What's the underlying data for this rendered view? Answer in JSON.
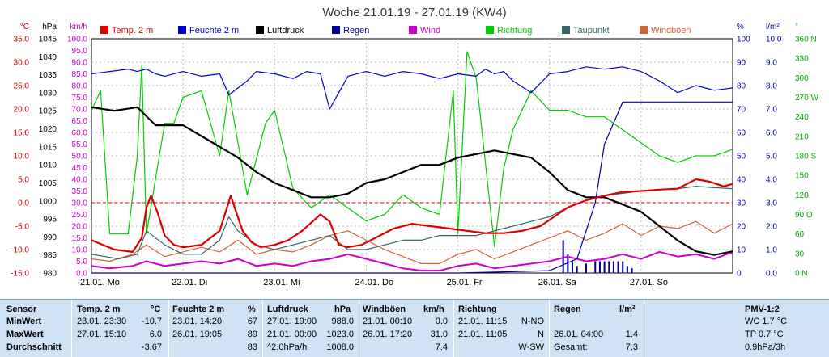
{
  "chart_data": {
    "type": "line",
    "title": "Woche 21.01.19 - 27.01.19 (KW4)",
    "left_axes": [
      {
        "unit": "°C",
        "color": "#cc0000",
        "range": [
          -15,
          35
        ],
        "ticks": [
          "35.0",
          "30.0",
          "25.0",
          "20.0",
          "15.0",
          "10.0",
          "5.0",
          "0.0",
          "-5.0",
          "-10.0",
          "-15.0"
        ]
      },
      {
        "unit": "hPa",
        "color": "#000000",
        "range": [
          980,
          1045
        ],
        "ticks": [
          "1045",
          "1040",
          "1035",
          "1030",
          "1025",
          "1020",
          "1015",
          "1010",
          "1005",
          "1000",
          "995",
          "990",
          "985",
          "980"
        ]
      },
      {
        "unit": "km/h",
        "color": "#cc00cc",
        "range": [
          0,
          100
        ],
        "ticks": [
          "100.0",
          "95.0",
          "90.0",
          "85.0",
          "80.0",
          "75.0",
          "70.0",
          "65.0",
          "60.0",
          "55.0",
          "50.0",
          "45.0",
          "40.0",
          "35.0",
          "30.0",
          "25.0",
          "20.0",
          "15.0",
          "10.0",
          "5.0",
          "0.0"
        ]
      }
    ],
    "right_axes": [
      {
        "unit": "%",
        "color": "#0000aa",
        "range": [
          0,
          100
        ],
        "ticks": [
          "100",
          "90",
          "80",
          "70",
          "60",
          "50",
          "40",
          "30",
          "20",
          "10",
          "0"
        ]
      },
      {
        "unit": "l/m²",
        "color": "#0000aa",
        "range": [
          0,
          10
        ],
        "ticks": [
          "10.0",
          "9.0",
          "8.0",
          "7.0",
          "6.0",
          "5.0",
          "4.0",
          "3.0",
          "2.0",
          "1.0",
          "0.0"
        ]
      },
      {
        "unit": "°",
        "color": "#00aa00",
        "range": [
          0,
          360
        ],
        "ticks": [
          "360 N",
          "330",
          "300",
          "270 W",
          "240",
          "210",
          "180 S",
          "150",
          "120",
          "90 O",
          "60",
          "30",
          "0 N"
        ]
      }
    ],
    "x_labels": [
      "21.01.  Mo",
      "22.01.  Di",
      "23.01.  Mi",
      "24.01.  Do",
      "25.01.  Fr",
      "26.01.  Sa",
      "27.01.  So"
    ],
    "legend": [
      {
        "name": "Temp. 2 m",
        "color": "#dd0000"
      },
      {
        "name": "Feuchte  2 m",
        "color": "#0000cc"
      },
      {
        "name": "Luftdruck",
        "color": "#000000"
      },
      {
        "name": "Regen",
        "color": "#000099"
      },
      {
        "name": "Wind",
        "color": "#cc00cc"
      },
      {
        "name": "Richtung",
        "color": "#00cc00"
      },
      {
        "name": "Taupunkt",
        "color": "#336666"
      },
      {
        "name": "Windböen",
        "color": "#cc6633"
      }
    ],
    "zero_line": 0,
    "series": [
      {
        "name": "Temp. 2 m",
        "axis": "°C",
        "color": "#dd0000",
        "x": [
          0,
          0.25,
          0.45,
          0.55,
          0.6,
          0.65,
          0.72,
          0.8,
          0.9,
          1.0,
          1.2,
          1.4,
          1.52,
          1.58,
          1.65,
          1.75,
          1.85,
          2.0,
          2.15,
          2.3,
          2.5,
          2.6,
          2.7,
          2.8,
          2.95,
          3.1,
          3.3,
          3.5,
          3.7,
          3.9,
          4.1,
          4.3,
          4.5,
          4.7,
          4.9,
          5.05,
          5.2,
          5.4,
          5.6,
          5.8,
          6.0,
          6.2,
          6.4,
          6.5,
          6.6,
          6.75,
          6.9,
          7.0
        ],
        "y": [
          -8.0,
          -10.0,
          -10.5,
          -7.5,
          -1.0,
          1.5,
          -2.0,
          -7.0,
          -9.0,
          -9.5,
          -9.0,
          -6.0,
          1.5,
          -2.0,
          -6.0,
          -8.5,
          -9.5,
          -9.0,
          -8.0,
          -6.0,
          -2.5,
          -4.0,
          -9.0,
          -9.5,
          -9.0,
          -7.5,
          -5.5,
          -4.5,
          -5.0,
          -5.5,
          -6.0,
          -6.5,
          -6.5,
          -6.0,
          -5.0,
          -3.0,
          -1.0,
          0.5,
          1.5,
          2.3,
          2.5,
          2.8,
          3.0,
          4.0,
          5.0,
          4.5,
          3.5,
          4.0
        ]
      },
      {
        "name": "Feuchte  2 m",
        "axis": "%",
        "color": "#0000cc",
        "x": [
          0,
          0.2,
          0.4,
          0.5,
          0.6,
          0.7,
          0.8,
          1.0,
          1.2,
          1.4,
          1.5,
          1.6,
          1.7,
          1.8,
          2.0,
          2.2,
          2.35,
          2.5,
          2.6,
          2.8,
          3.0,
          3.2,
          3.4,
          3.6,
          3.8,
          4.0,
          4.2,
          4.3,
          4.4,
          4.5,
          4.6,
          4.8,
          5.0,
          5.2,
          5.4,
          5.6,
          5.8,
          6.0,
          6.2,
          6.4,
          6.6,
          6.8,
          7.0
        ],
        "y": [
          85,
          86,
          87,
          86,
          87,
          85,
          84,
          86,
          84,
          85,
          76,
          79,
          82,
          86,
          85,
          83,
          86,
          85,
          70,
          84,
          86,
          84,
          86,
          85,
          83,
          85,
          84,
          87,
          85,
          86,
          82,
          77,
          85,
          86,
          88,
          87,
          88,
          86,
          82,
          77,
          80,
          78,
          79
        ]
      },
      {
        "name": "Luftdruck",
        "axis": "hPa",
        "color": "#000000",
        "x": [
          0,
          0.25,
          0.5,
          0.7,
          1.0,
          1.2,
          1.4,
          1.6,
          1.8,
          2.0,
          2.2,
          2.4,
          2.6,
          2.8,
          3.0,
          3.2,
          3.4,
          3.6,
          3.8,
          4.0,
          4.2,
          4.4,
          4.6,
          4.8,
          5.0,
          5.2,
          5.4,
          5.6,
          5.8,
          6.0,
          6.2,
          6.4,
          6.6,
          6.8,
          7.0
        ],
        "y": [
          1026,
          1025,
          1026,
          1021,
          1021,
          1018,
          1015,
          1012,
          1008,
          1005,
          1003,
          1001,
          1001,
          1002,
          1005,
          1006,
          1008,
          1010,
          1010,
          1012,
          1013,
          1014,
          1013,
          1012,
          1008,
          1003,
          1001,
          1001,
          999,
          997,
          993,
          989,
          986,
          985,
          986
        ]
      },
      {
        "name": "Regen",
        "axis": "l/m²",
        "color": "#000099",
        "x": [
          0,
          4.0,
          4.5,
          5.0,
          5.3,
          5.5,
          5.6,
          5.8,
          6.0,
          6.5,
          7.0
        ],
        "y": [
          0,
          0,
          0.05,
          0.1,
          0.6,
          3.0,
          5.5,
          7.3,
          7.3,
          7.3,
          7.3
        ]
      },
      {
        "name": "Wind",
        "axis": "km/h",
        "color": "#cc00cc",
        "x": [
          0,
          0.2,
          0.45,
          0.6,
          0.8,
          1.0,
          1.2,
          1.4,
          1.6,
          1.8,
          2.0,
          2.2,
          2.4,
          2.6,
          2.8,
          3.0,
          3.2,
          3.4,
          3.6,
          3.8,
          4.0,
          4.2,
          4.4,
          4.6,
          4.8,
          5.0,
          5.2,
          5.4,
          5.6,
          5.8,
          6.0,
          6.2,
          6.4,
          6.6,
          6.8,
          7.0
        ],
        "y": [
          3,
          2,
          3,
          5,
          3,
          4,
          5,
          4,
          6,
          3,
          4,
          3,
          5,
          6,
          8,
          6,
          4,
          2,
          1,
          1,
          3,
          4,
          2,
          3,
          4,
          5,
          7,
          5,
          6,
          8,
          6,
          9,
          7,
          8,
          6,
          9
        ]
      },
      {
        "name": "Richtung",
        "axis": "°",
        "color": "#00cc00",
        "x": [
          0,
          0.1,
          0.2,
          0.4,
          0.5,
          0.55,
          0.6,
          0.8,
          0.9,
          1.0,
          1.2,
          1.4,
          1.5,
          1.6,
          1.7,
          1.9,
          2.0,
          2.2,
          2.4,
          2.6,
          2.8,
          3.0,
          3.2,
          3.4,
          3.6,
          3.8,
          3.95,
          4.0,
          4.1,
          4.2,
          4.4,
          4.5,
          4.6,
          4.8,
          5.0,
          5.2,
          5.4,
          5.6,
          5.8,
          6.0,
          6.2,
          6.4,
          6.6,
          6.8,
          7.0
        ],
        "y": [
          250,
          280,
          60,
          60,
          180,
          320,
          60,
          230,
          230,
          270,
          280,
          180,
          280,
          200,
          120,
          230,
          250,
          130,
          100,
          120,
          100,
          80,
          90,
          120,
          100,
          90,
          280,
          60,
          340,
          300,
          40,
          160,
          220,
          280,
          250,
          250,
          240,
          240,
          220,
          200,
          180,
          170,
          180,
          180,
          190
        ]
      },
      {
        "name": "Taupunkt",
        "axis": "°C",
        "color": "#336666",
        "x": [
          0,
          0.3,
          0.5,
          0.6,
          0.8,
          1.0,
          1.2,
          1.4,
          1.5,
          1.6,
          1.8,
          2.0,
          2.2,
          2.4,
          2.6,
          2.8,
          3.0,
          3.2,
          3.4,
          3.6,
          3.8,
          4.0,
          4.2,
          4.4,
          4.6,
          4.8,
          5.0,
          5.2,
          5.4,
          5.6,
          5.8,
          6.0,
          6.2,
          6.4,
          6.6,
          6.8,
          7.0
        ],
        "y": [
          -11,
          -12,
          -11,
          -6,
          -9,
          -11,
          -11,
          -8,
          -3,
          -6,
          -9,
          -10,
          -9,
          -8,
          -7,
          -10,
          -10,
          -9,
          -8,
          -8,
          -7,
          -7,
          -7,
          -6,
          -5,
          -4,
          -3,
          -1,
          0.5,
          1.5,
          2,
          2.5,
          2.8,
          3,
          3.5,
          3.2,
          3
        ]
      },
      {
        "name": "Windböen",
        "axis": "km/h",
        "color": "#cc6633",
        "x": [
          0,
          0.2,
          0.45,
          0.6,
          0.8,
          1.0,
          1.2,
          1.4,
          1.6,
          1.8,
          2.0,
          2.2,
          2.4,
          2.6,
          2.8,
          3.0,
          3.2,
          3.4,
          3.6,
          3.8,
          4.0,
          4.2,
          4.4,
          4.6,
          4.8,
          5.0,
          5.2,
          5.4,
          5.6,
          5.8,
          6.0,
          6.2,
          6.4,
          6.6,
          6.8,
          7.0
        ],
        "y": [
          6,
          5,
          8,
          12,
          7,
          9,
          11,
          9,
          14,
          8,
          10,
          9,
          12,
          16,
          18,
          14,
          10,
          7,
          4,
          4,
          8,
          10,
          6,
          9,
          12,
          15,
          18,
          14,
          17,
          21,
          16,
          20,
          19,
          22,
          17,
          21
        ]
      }
    ],
    "rain_bars": {
      "x": [
        5.15,
        5.2,
        5.25,
        5.3,
        5.4,
        5.5,
        5.55,
        5.6,
        5.65,
        5.7,
        5.75,
        5.8,
        5.85,
        5.9
      ],
      "y": [
        1.4,
        0.8,
        0.5,
        0.3,
        0.4,
        0.5,
        0.5,
        0.5,
        0.5,
        0.5,
        0.5,
        0.5,
        0.3,
        0.2
      ]
    }
  },
  "table": {
    "headers": {
      "sensor": "Sensor",
      "temp": "Temp. 2 m",
      "temp_unit": "°C",
      "feuchte": "Feuchte  2 m",
      "feuchte_unit": "%",
      "luftdruck": "Luftdruck",
      "luftdruck_unit": "hPa",
      "windboeen": "Windböen",
      "windboeen_unit": "km/h",
      "richtung": "Richtung",
      "regen": "Regen",
      "regen_unit": "l/m²",
      "pmv": "PMV-1:2"
    },
    "rows": [
      {
        "label": "MinWert",
        "temp_time": "23.01.  23:30",
        "temp_val": "-10.7",
        "feuchte_time": "23.01.  14:20",
        "feuchte_val": "67",
        "luft_time": "27.01.  19:00",
        "luft_val": "988.0",
        "wb_time": "21.01.  00:10",
        "wb_val": "0.0",
        "ri_time": "21.01.  11:15",
        "ri_val": "N-NO",
        "re_time": "",
        "re_val": "",
        "pmv": "WC 1.7 °C"
      },
      {
        "label": "MaxWert",
        "temp_time": "27.01.  15:10",
        "temp_val": "6.0",
        "feuchte_time": "26.01.  19:05",
        "feuchte_val": "89",
        "luft_time": "21.01.  00:00",
        "luft_val": "1023.0",
        "wb_time": "26.01.  17:20",
        "wb_val": "31.0",
        "ri_time": "21.01.  11:05",
        "ri_val": "N",
        "re_time": "26.01.  04:00",
        "re_val": "1.4",
        "pmv": "TP 0.7 °C"
      },
      {
        "label": "Durchschnitt",
        "temp_time": "",
        "temp_val": "-3.67",
        "feuchte_time": "",
        "feuchte_val": "83",
        "luft_time": "^2.0hPa/h",
        "luft_val": "1008.0",
        "wb_time": "",
        "wb_val": "7.4",
        "ri_time": "",
        "ri_val": "W-SW",
        "re_time": "Gesamt:",
        "re_val": "7.3",
        "pmv": "0.9hPa/3h"
      }
    ]
  }
}
